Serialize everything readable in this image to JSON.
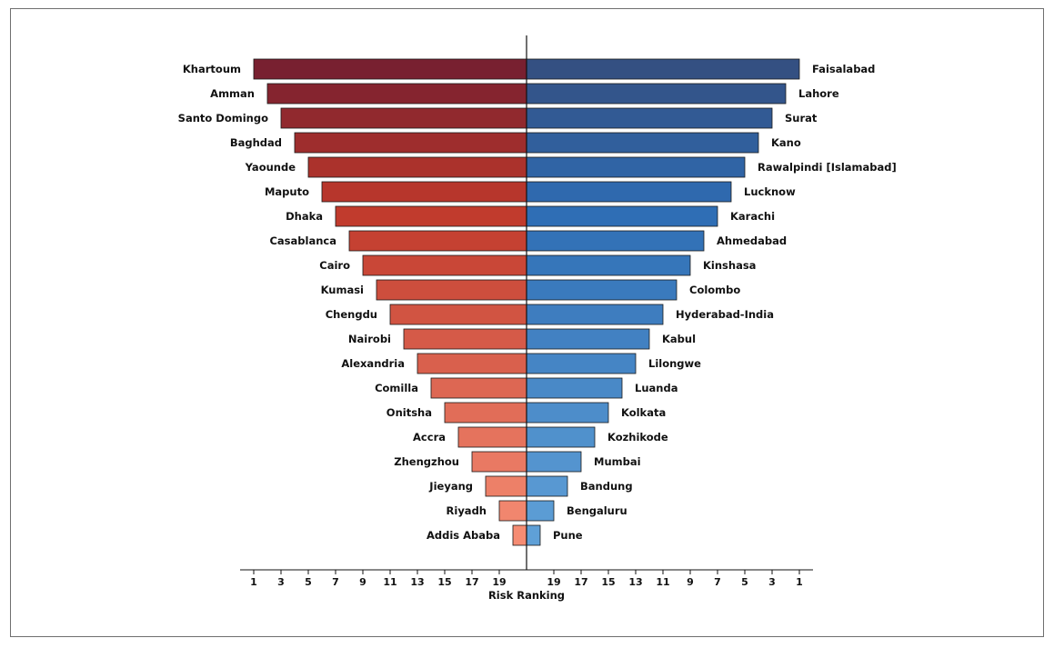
{
  "chart_data": {
    "type": "bar",
    "orientation": "horizontal-diverging",
    "xlabel": "Risk Ranking",
    "x_ticks": [
      1,
      3,
      5,
      7,
      9,
      11,
      13,
      15,
      17,
      19
    ],
    "xlim": [
      1,
      21
    ],
    "left_color": "#c0392b",
    "right_color": "#2e6db4",
    "left_series": {
      "categories": [
        "Khartoum",
        "Amman",
        "Santo Domingo",
        "Baghdad",
        "Yaounde",
        "Maputo",
        "Dhaka",
        "Casablanca",
        "Cairo",
        "Kumasi",
        "Chengdu",
        "Nairobi",
        "Alexandria",
        "Comilla",
        "Onitsha",
        "Accra",
        "Zhengzhou",
        "Jieyang",
        "Riyadh",
        "Addis Ababa"
      ],
      "values": [
        1,
        2,
        3,
        4,
        5,
        6,
        7,
        8,
        9,
        10,
        11,
        12,
        13,
        14,
        15,
        16,
        17,
        18,
        19,
        20
      ]
    },
    "right_series": {
      "categories": [
        "Faisalabad",
        "Lahore",
        "Surat",
        "Kano",
        "Rawalpindi [Islamabad]",
        "Lucknow",
        "Karachi",
        "Ahmedabad",
        "Kinshasa",
        "Colombo",
        "Hyderabad-India",
        "Kabul",
        "Lilongwe",
        "Luanda",
        "Kolkata",
        "Kozhikode",
        "Mumbai",
        "Bandung",
        "Bengaluru",
        "Pune"
      ],
      "values": [
        1,
        2,
        3,
        4,
        5,
        6,
        7,
        8,
        9,
        10,
        11,
        12,
        13,
        14,
        15,
        16,
        17,
        18,
        19,
        20
      ]
    }
  }
}
